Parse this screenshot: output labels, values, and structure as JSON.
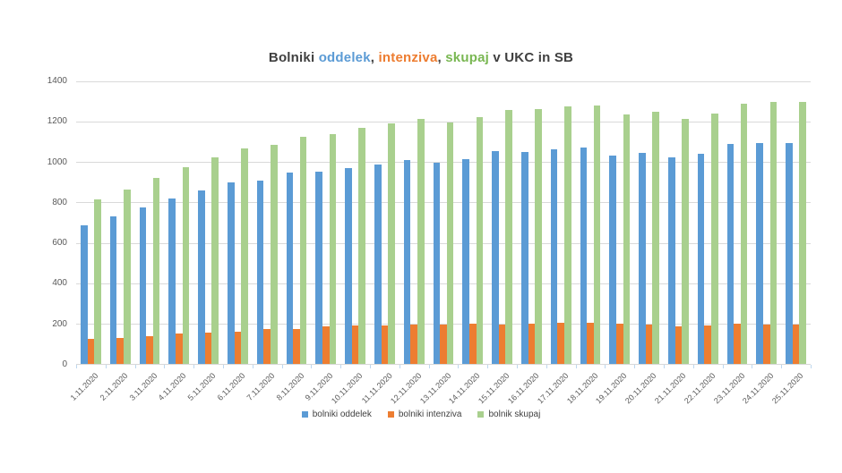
{
  "title": {
    "full": "Bolniki oddelek, intenziva, skupaj v UKC in SB",
    "segments": [
      "Bolniki ",
      "oddelek",
      ", ",
      "intenziva",
      ", ",
      "skupaj",
      " v UKC in SB"
    ]
  },
  "colors": {
    "blue": "#5B9BD5",
    "orange": "#ED7D31",
    "green": "#A9D08E",
    "title_green": "#79B752",
    "dark": "#404040",
    "axis_text": "#595959",
    "gridline": "#D9D9D9",
    "tick": "#BDD7EE",
    "background": "#FFFFFF"
  },
  "chart_data": {
    "type": "bar",
    "title": "Bolniki oddelek, intenziva, skupaj v UKC in SB",
    "xlabel": "",
    "ylabel": "",
    "ylim": [
      0,
      1400
    ],
    "ytick_step": 200,
    "grid": true,
    "legend_position": "bottom",
    "categories": [
      "1.11.2020",
      "2.11.2020",
      "3.11.2020",
      "4.11.2020",
      "5.11.2020",
      "6.11.2020",
      "7.11.2020",
      "8.11.2020",
      "9.11.2020",
      "10.11.2020",
      "11.11.2020",
      "12.11.2020",
      "13.11.2020",
      "14.11.2020",
      "15.11.2020",
      "16.11.2020",
      "17.11.2020",
      "18.11.2020",
      "19.11.2020",
      "20.11.2020",
      "21.11.2020",
      "22.11.2020",
      "23.11.2020",
      "24.11.2020",
      "25.11.2020"
    ],
    "series": [
      {
        "name": "bolniki oddelek",
        "color": "#5B9BD5",
        "values": [
          690,
          735,
          778,
          820,
          860,
          900,
          908,
          950,
          953,
          973,
          990,
          1010,
          997,
          1015,
          1057,
          1053,
          1063,
          1072,
          1034,
          1048,
          1025,
          1044,
          1090,
          1095,
          1094
        ]
      },
      {
        "name": "bolniki intenziva",
        "color": "#ED7D31",
        "values": [
          128,
          134,
          143,
          154,
          157,
          165,
          175,
          178,
          188,
          193,
          195,
          197,
          200,
          203,
          200,
          205,
          206,
          208,
          204,
          198,
          190,
          196,
          202,
          200,
          200
        ]
      },
      {
        "name": "bolnik skupaj",
        "color": "#A9D08E",
        "values": [
          817,
          867,
          925,
          978,
          1024,
          1070,
          1086,
          1128,
          1140,
          1170,
          1194,
          1213,
          1197,
          1224,
          1259,
          1262,
          1275,
          1282,
          1238,
          1252,
          1213,
          1243,
          1291,
          1297,
          1300
        ]
      }
    ]
  }
}
